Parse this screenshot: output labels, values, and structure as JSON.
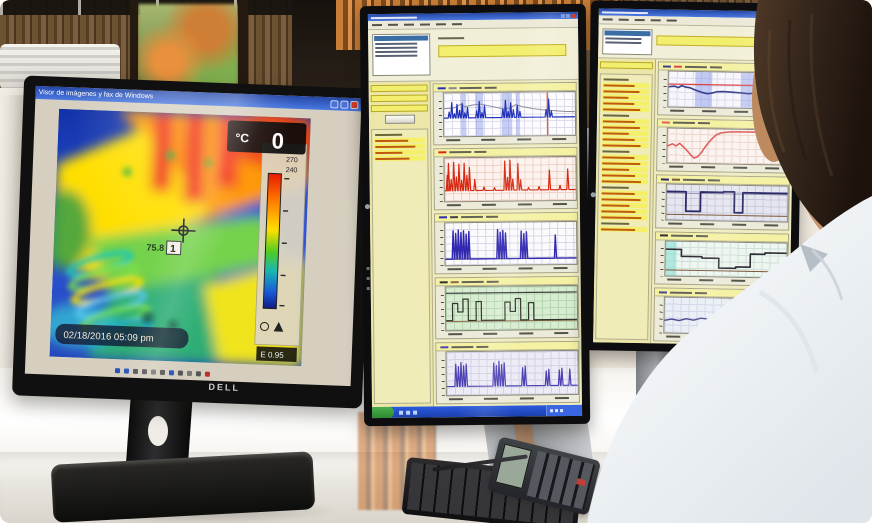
{
  "left_monitor": {
    "brand": "DELL",
    "window_title": "Visor de imágenes y fax de Windows",
    "thermal": {
      "unit": "°C",
      "reading": "0",
      "scale_top_label": "270",
      "scale_second_label": "240",
      "emissivity": "E 0.95",
      "spot_value": "75.8",
      "spot_number": "1",
      "timestamp": "02/18/2016  05:09 pm"
    }
  },
  "middle_monitor": {
    "sidebar_rows": 5,
    "charts": [
      {
        "legend": [
          "#2030b8",
          "#8a8a96"
        ],
        "bg": "#fcfcfe",
        "grid": "#dcdcea",
        "bands": [
          {
            "x": [
              13,
              17
            ]
          },
          {
            "x": [
              24,
              30
            ]
          },
          {
            "x": [
              44,
              52
            ]
          },
          {
            "x": [
              55,
              58
            ]
          }
        ],
        "vlines": [
          {
            "x": 79,
            "color": "#e05a3a",
            "w": 1.4
          }
        ],
        "series": [
          {
            "color": "#8a8a96",
            "w": 1,
            "points": [
              [
                0,
                36
              ],
              [
                8,
                34
              ],
              [
                13,
                26
              ],
              [
                16,
                32
              ],
              [
                22,
                28
              ],
              [
                28,
                26
              ],
              [
                34,
                30
              ],
              [
                40,
                34
              ],
              [
                46,
                38
              ],
              [
                50,
                36
              ],
              [
                55,
                28
              ],
              [
                60,
                33
              ],
              [
                68,
                38
              ],
              [
                76,
                41
              ],
              [
                84,
                43
              ],
              [
                92,
                45
              ],
              [
                100,
                46
              ]
            ]
          },
          {
            "color": "#2030b8",
            "w": 1.2,
            "baseline": 58,
            "spikes": [
              [
                4,
                44
              ],
              [
                6,
                22
              ],
              [
                8,
                48
              ],
              [
                10,
                26
              ],
              [
                12,
                40
              ],
              [
                14,
                24
              ],
              [
                16,
                46
              ],
              [
                18,
                34
              ],
              [
                25,
                42
              ],
              [
                27,
                20
              ],
              [
                29,
                46
              ],
              [
                31,
                30
              ],
              [
                45,
                38
              ],
              [
                47,
                18
              ],
              [
                49,
                44
              ],
              [
                51,
                24
              ],
              [
                53,
                40
              ],
              [
                56,
                30
              ],
              [
                58,
                44
              ],
              [
                78,
                40
              ],
              [
                80,
                16
              ],
              [
                82,
                44
              ]
            ]
          }
        ]
      },
      {
        "legend": [
          "#d82812"
        ],
        "bg": "#fdf3ee",
        "grid": "#eed2c6",
        "series": [
          {
            "color": "#d82812",
            "w": 1.2,
            "baseline": 76,
            "spikes": [
              [
                2,
                40
              ],
              [
                3,
                12
              ],
              [
                5,
                50
              ],
              [
                7,
                10
              ],
              [
                9,
                44
              ],
              [
                11,
                14
              ],
              [
                13,
                52
              ],
              [
                15,
                12
              ],
              [
                17,
                40
              ],
              [
                19,
                22
              ],
              [
                23,
                50
              ],
              [
                30,
                68
              ],
              [
                38,
                70
              ],
              [
                46,
                8
              ],
              [
                48,
                46
              ],
              [
                50,
                6
              ],
              [
                52,
                50
              ],
              [
                56,
                14
              ],
              [
                58,
                52
              ],
              [
                64,
                70
              ],
              [
                72,
                68
              ],
              [
                80,
                30
              ],
              [
                88,
                66
              ],
              [
                94,
                28
              ]
            ]
          }
        ]
      },
      {
        "legend": [
          "#3028b0",
          "#404050"
        ],
        "bg": "#fbfbfd",
        "grid": "#d8d8e6",
        "hlines": [
          {
            "y": 84,
            "color": "#404050",
            "w": 1
          }
        ],
        "series": [
          {
            "color": "#3028b0",
            "w": 1.4,
            "baseline": 84,
            "spikes": [
              [
                6,
                18
              ],
              [
                8,
                24
              ],
              [
                10,
                16
              ],
              [
                12,
                22
              ],
              [
                14,
                18
              ],
              [
                16,
                26
              ],
              [
                18,
                20
              ],
              [
                40,
                16
              ],
              [
                42,
                22
              ],
              [
                44,
                18
              ],
              [
                46,
                24
              ],
              [
                58,
                20
              ],
              [
                60,
                26
              ],
              [
                62,
                22
              ],
              [
                84,
                30
              ]
            ]
          }
        ]
      },
      {
        "legend": [
          "#33332e",
          "#8a6848"
        ],
        "bg": "#d8ecd2",
        "grid": "#b6d6b2",
        "hlines": [
          {
            "y": 14,
            "color": "#3a3a3a",
            "w": 1.2
          },
          {
            "y": 80,
            "color": "#8a6848",
            "w": 1
          }
        ],
        "series": [
          {
            "color": "#33332e",
            "w": 1.2,
            "points": [
              [
                0,
                78
              ],
              [
                5,
                78
              ],
              [
                5,
                38
              ],
              [
                9,
                38
              ],
              [
                9,
                58
              ],
              [
                13,
                58
              ],
              [
                13,
                28
              ],
              [
                17,
                28
              ],
              [
                17,
                78
              ],
              [
                23,
                78
              ],
              [
                23,
                34
              ],
              [
                27,
                34
              ],
              [
                27,
                78
              ],
              [
                42,
                78
              ],
              [
                45,
                78
              ],
              [
                45,
                36
              ],
              [
                49,
                36
              ],
              [
                49,
                58
              ],
              [
                53,
                58
              ],
              [
                53,
                28
              ],
              [
                57,
                28
              ],
              [
                57,
                78
              ],
              [
                63,
                78
              ],
              [
                63,
                38
              ],
              [
                67,
                38
              ],
              [
                67,
                78
              ],
              [
                100,
                78
              ]
            ]
          }
        ]
      },
      {
        "legend": [
          "#4c40b4"
        ],
        "bg": "#ecebf6",
        "grid": "#d2d2e4",
        "series": [
          {
            "color": "#4c40b4",
            "w": 1.2,
            "baseline": 80,
            "spikes": [
              [
                7,
                28
              ],
              [
                9,
                34
              ],
              [
                11,
                24
              ],
              [
                13,
                32
              ],
              [
                15,
                28
              ],
              [
                36,
                26
              ],
              [
                38,
                32
              ],
              [
                40,
                22
              ],
              [
                42,
                30
              ],
              [
                44,
                26
              ],
              [
                58,
                38
              ],
              [
                60,
                34
              ],
              [
                76,
                46
              ],
              [
                78,
                42
              ],
              [
                86,
                44
              ],
              [
                88,
                40
              ],
              [
                94,
                42
              ]
            ]
          }
        ]
      }
    ]
  },
  "right_monitor": {
    "sidebar_rows": 26,
    "charts": [
      {
        "legend": [
          "#38408c",
          "#e04848"
        ],
        "bg": "#f6f6fc",
        "grid": "#dcdcec",
        "bands": [
          {
            "x": [
              22,
              36
            ]
          },
          {
            "x": [
              60,
              78
            ]
          }
        ],
        "hlines": [
          {
            "y": 36,
            "color": "#e04848",
            "w": 1.2
          }
        ],
        "series": [
          {
            "color": "#38408c",
            "w": 1.6,
            "points": [
              [
                0,
                44
              ],
              [
                5,
                42
              ],
              [
                8,
                46
              ],
              [
                11,
                40
              ],
              [
                14,
                44
              ],
              [
                18,
                46
              ],
              [
                22,
                52
              ],
              [
                27,
                58
              ],
              [
                32,
                62
              ],
              [
                36,
                60
              ],
              [
                40,
                56
              ],
              [
                45,
                55
              ],
              [
                50,
                56
              ],
              [
                55,
                57
              ],
              [
                60,
                58
              ],
              [
                66,
                60
              ],
              [
                72,
                58
              ],
              [
                78,
                54
              ],
              [
                84,
                52
              ],
              [
                90,
                55
              ],
              [
                96,
                53
              ],
              [
                100,
                54
              ]
            ]
          }
        ]
      },
      {
        "legend": [
          "#e06060"
        ],
        "bg": "#fbf3ef",
        "grid": "#ecd6cc",
        "series": [
          {
            "color": "#e06060",
            "w": 1.6,
            "points": [
              [
                0,
                50
              ],
              [
                4,
                44
              ],
              [
                7,
                50
              ],
              [
                10,
                42
              ],
              [
                13,
                52
              ],
              [
                16,
                62
              ],
              [
                19,
                74
              ],
              [
                22,
                84
              ],
              [
                25,
                80
              ],
              [
                28,
                68
              ],
              [
                31,
                52
              ],
              [
                34,
                38
              ],
              [
                37,
                26
              ],
              [
                40,
                16
              ],
              [
                44,
                10
              ],
              [
                50,
                7
              ],
              [
                58,
                6
              ],
              [
                70,
                6
              ],
              [
                85,
                5
              ],
              [
                100,
                5
              ]
            ]
          }
        ]
      },
      {
        "legend": [
          "#2a2a68",
          "#7a5638"
        ],
        "bg": "#e6e6f0",
        "grid": "#c9c9dc",
        "hlines": [
          {
            "y": 86,
            "color": "#7a5638",
            "w": 1
          },
          {
            "y": 24,
            "color": "#9090b0",
            "w": 1
          }
        ],
        "series": [
          {
            "color": "#2a2a68",
            "w": 1.8,
            "points": [
              [
                0,
                20
              ],
              [
                16,
                20
              ],
              [
                16,
                76
              ],
              [
                28,
                76
              ],
              [
                28,
                20
              ],
              [
                47,
                20
              ],
              [
                47,
                18
              ],
              [
                56,
                18
              ],
              [
                56,
                78
              ],
              [
                63,
                78
              ],
              [
                63,
                20
              ],
              [
                100,
                20
              ]
            ]
          }
        ]
      },
      {
        "legend": [
          "#2e2e34"
        ],
        "bg": "#eef6f1",
        "grid": "#cfe0d6",
        "bands": [
          {
            "x": [
              0,
              9
            ],
            "color": "rgba(130,220,210,0.55)"
          }
        ],
        "hlines": [
          {
            "y": 82,
            "color": "#7a5638",
            "w": 1
          }
        ],
        "series": [
          {
            "color": "#2e2e34",
            "w": 1.6,
            "points": [
              [
                0,
                22
              ],
              [
                13,
                22
              ],
              [
                13,
                42
              ],
              [
                30,
                42
              ],
              [
                30,
                46
              ],
              [
                44,
                46
              ],
              [
                44,
                74
              ],
              [
                58,
                74
              ],
              [
                58,
                70
              ],
              [
                70,
                70
              ],
              [
                70,
                32
              ],
              [
                82,
                32
              ],
              [
                82,
                28
              ],
              [
                100,
                28
              ]
            ]
          }
        ]
      },
      {
        "legend": [
          "#4c4890"
        ],
        "bg": "#eaeef6",
        "grid": "#d2d6e6",
        "series": [
          {
            "color": "#4c4890",
            "w": 1.4,
            "points": [
              [
                0,
                66
              ],
              [
                6,
                62
              ],
              [
                12,
                66
              ],
              [
                18,
                60
              ],
              [
                24,
                64
              ],
              [
                30,
                58
              ],
              [
                36,
                60
              ],
              [
                42,
                54
              ],
              [
                48,
                57
              ],
              [
                54,
                52
              ],
              [
                60,
                55
              ]
            ]
          }
        ]
      }
    ]
  }
}
